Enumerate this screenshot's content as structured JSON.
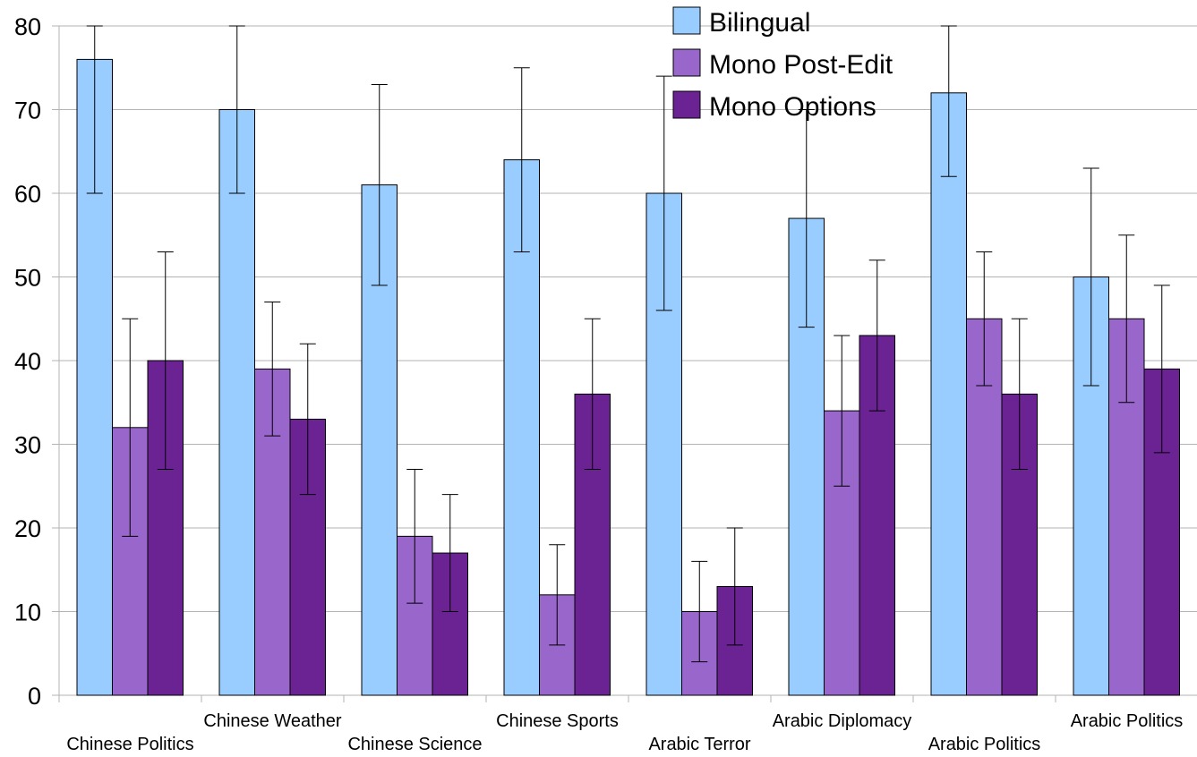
{
  "chart_data": {
    "type": "bar",
    "categories": [
      "Chinese Politics",
      "Chinese Weather",
      "Chinese Science",
      "Chinese Sports",
      "Arabic Terror",
      "Arabic Diplomacy",
      "Arabic Politics",
      "Arabic Politics"
    ],
    "series": [
      {
        "name": "Bilingual",
        "color": "#99CCFF",
        "values": [
          76,
          70,
          61,
          64,
          60,
          57,
          72,
          50
        ],
        "error_low": [
          60,
          60,
          49,
          53,
          46,
          44,
          62,
          37
        ],
        "error_high": [
          80,
          80,
          73,
          75,
          74,
          70,
          80,
          63
        ]
      },
      {
        "name": "Mono Post-Edit",
        "color": "#9966CC",
        "values": [
          32,
          39,
          19,
          12,
          10,
          34,
          45,
          45
        ],
        "error_low": [
          19,
          31,
          11,
          6,
          4,
          25,
          37,
          35
        ],
        "error_high": [
          45,
          47,
          27,
          18,
          16,
          43,
          53,
          55
        ]
      },
      {
        "name": "Mono Options",
        "color": "#6B2394",
        "values": [
          40,
          33,
          17,
          36,
          13,
          43,
          36,
          39
        ],
        "error_low": [
          27,
          24,
          10,
          27,
          6,
          34,
          27,
          29
        ],
        "error_high": [
          53,
          42,
          24,
          45,
          20,
          52,
          45,
          49
        ]
      }
    ],
    "ylim": [
      0,
      80
    ],
    "yticks": [
      0,
      10,
      20,
      30,
      40,
      50,
      60,
      70,
      80
    ],
    "grid": true,
    "legend_position": "top-right",
    "title": "",
    "xlabel": "",
    "ylabel": ""
  }
}
